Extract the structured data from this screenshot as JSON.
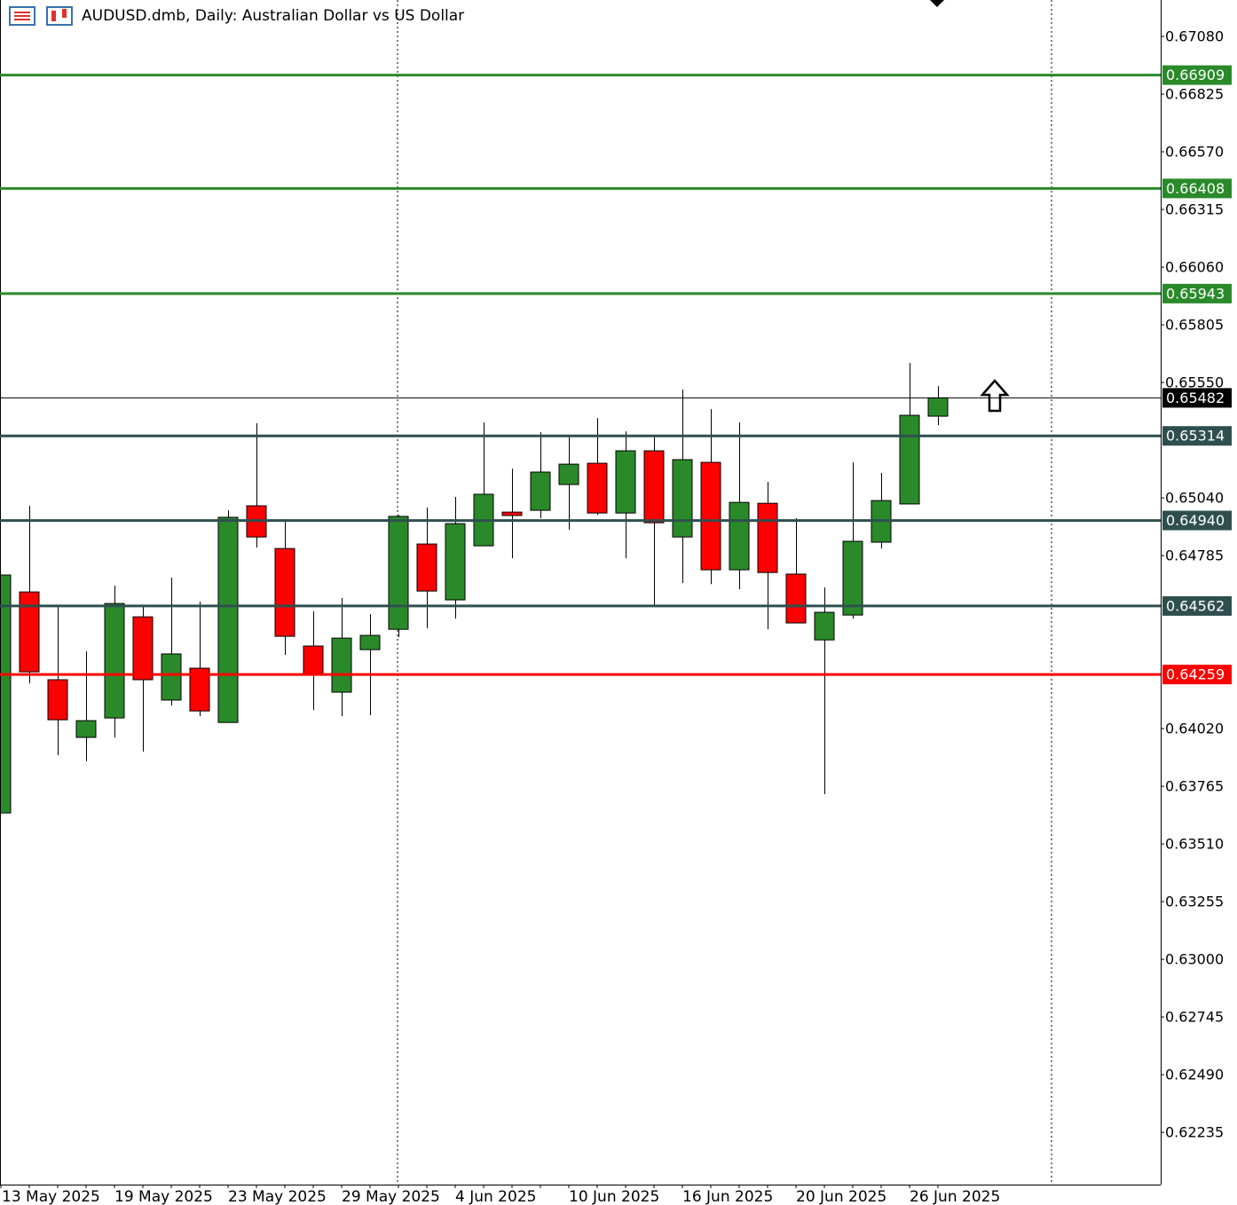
{
  "chart_data": {
    "type": "candlestick",
    "title": "AUDUSD.dmb, Daily:  Australian Dollar vs US Dollar",
    "categories": [
      "13 May 2025",
      null,
      null,
      null,
      "19 May 2025",
      null,
      null,
      null,
      "23 May 2025",
      null,
      null,
      null,
      "29 May 2025",
      null,
      null,
      null,
      "4 Jun 2025",
      null,
      null,
      null,
      "10 Jun 2025",
      null,
      null,
      null,
      "16 Jun 2025",
      null,
      null,
      null,
      "20 Jun 2025",
      null,
      null,
      null,
      "26 Jun 2025",
      null
    ],
    "open": [
      0.63647,
      0.64624,
      0.64236,
      0.63981,
      0.64067,
      0.64514,
      0.64146,
      0.64287,
      0.64047,
      0.65005,
      0.64816,
      0.64385,
      0.64181,
      0.64369,
      0.64459,
      0.64836,
      0.64589,
      0.64828,
      0.64977,
      0.64985,
      0.65099,
      0.65193,
      0.64973,
      0.65248,
      0.64867,
      0.65197,
      0.64722,
      0.65016,
      0.64703,
      0.64412,
      0.64522,
      0.64844,
      0.65013,
      0.65401
    ],
    "high": [
      0.64699,
      0.65005,
      0.64565,
      0.64361,
      0.64652,
      0.64561,
      0.64687,
      0.64581,
      0.64985,
      0.6537,
      0.64946,
      0.64538,
      0.64597,
      0.64526,
      0.64965,
      0.64997,
      0.65044,
      0.65373,
      0.65169,
      0.6533,
      0.65319,
      0.65393,
      0.65334,
      0.65319,
      0.65519,
      0.65432,
      0.65373,
      0.65111,
      0.6495,
      0.64644,
      0.65197,
      0.6515,
      0.65636,
      0.65534
    ],
    "low": [
      0.63647,
      0.6422,
      0.63902,
      0.63875,
      0.63981,
      0.63918,
      0.64122,
      0.64075,
      0.64047,
      0.6482,
      0.64346,
      0.64102,
      0.64075,
      0.64079,
      0.64424,
      0.64463,
      0.64506,
      0.64828,
      0.64773,
      0.6495,
      0.64899,
      0.64965,
      0.64773,
      0.64565,
      0.64663,
      0.64659,
      0.64636,
      0.64459,
      0.64487,
      0.6373,
      0.64506,
      0.64816,
      0.65013,
      0.65362
    ],
    "close": [
      0.64699,
      0.64271,
      0.64059,
      0.64055,
      0.64573,
      0.64236,
      0.6435,
      0.64098,
      0.64954,
      0.64867,
      0.64428,
      0.64263,
      0.6442,
      0.64432,
      0.64958,
      0.64628,
      0.64926,
      0.65056,
      0.64962,
      0.65154,
      0.65189,
      0.64973,
      0.65248,
      0.6493,
      0.65209,
      0.64722,
      0.6502,
      0.6471,
      0.64487,
      0.64534,
      0.64848,
      0.65028,
      0.65405,
      0.65482
    ],
    "up_color": "#2a8a2a",
    "down_color": "#ff0000",
    "ylim": [
      0.62004,
      0.67241
    ],
    "yticks": [
      {
        "value": 0.6708,
        "label": "0.67080"
      },
      0.66825,
      {
        "value": 0.6657,
        "label": "0.66570"
      },
      0.66315,
      {
        "value": 0.6606,
        "label": "0.66060"
      },
      0.65805,
      {
        "value": 0.6555,
        "label": "0.65550"
      },
      {
        "value": 0.6504,
        "label": "0.65040"
      },
      0.64785,
      {
        "value": 0.6402,
        "label": "0.64020"
      },
      0.63765,
      {
        "value": 0.6351,
        "label": "0.63510"
      },
      0.63255,
      {
        "value": 0.63,
        "label": "0.63000"
      },
      0.62745,
      {
        "value": 0.6249,
        "label": "0.62490"
      },
      0.62235
    ],
    "levels": [
      {
        "value": 0.66909,
        "color": "#2a8a2a"
      },
      {
        "value": 0.66408,
        "color": "#2a8a2a"
      },
      {
        "value": 0.65943,
        "color": "#2a8a2a"
      },
      {
        "value": 0.65482,
        "color": "#000000"
      },
      {
        "value": 0.65314,
        "color": "#2f4f4f"
      },
      {
        "value": 0.6494,
        "label": "0.64940",
        "color": "#2f4f4f"
      },
      {
        "value": 0.64562,
        "color": "#2f4f4f"
      },
      {
        "value": 0.64259,
        "color": "#ff0000"
      }
    ]
  }
}
